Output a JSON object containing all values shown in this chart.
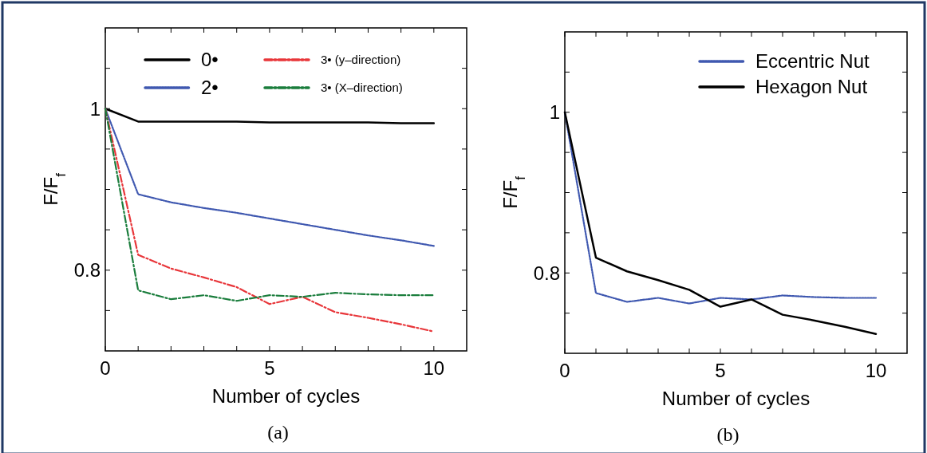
{
  "chart_data": [
    {
      "type": "line",
      "title": "(a)",
      "xlabel": "Number of cycles",
      "ylabel": "F/F$_{f}$",
      "x": [
        0,
        1,
        2,
        3,
        4,
        5,
        6,
        7,
        8,
        9,
        10
      ],
      "xlim": [
        0,
        11
      ],
      "xticks": [
        0,
        {
          "value": 1,
          "label": null
        },
        {
          "value": 2,
          "label": null
        },
        {
          "value": 3,
          "label": null
        },
        {
          "value": 4,
          "label": null
        },
        5,
        {
          "value": 6,
          "label": null
        },
        {
          "value": 7,
          "label": null
        },
        {
          "value": 8,
          "label": null
        },
        {
          "value": 9,
          "label": null
        },
        10
      ],
      "ylim": [
        0.7,
        1.1
      ],
      "yticks": [
        {
          "value": 0.75,
          "label": null
        },
        {
          "value": 0.8,
          "label": "0.8"
        },
        {
          "value": 0.85,
          "label": null
        },
        {
          "value": 0.9,
          "label": null
        },
        {
          "value": 0.95,
          "label": null
        },
        1,
        {
          "value": 1.05,
          "label": null
        }
      ],
      "grid": false,
      "legend": "top",
      "marker": "none",
      "series": [
        {
          "name": "0•",
          "color": "#000000",
          "line_style": "solid",
          "values": [
            1,
            0.984,
            0.984,
            0.984,
            0.984,
            0.983,
            0.983,
            0.983,
            0.983,
            0.982,
            0.982
          ]
        },
        {
          "name": "2•",
          "color": "#3f58b0",
          "line_style": "dotted",
          "values": [
            1,
            0.894,
            0.884,
            0.877,
            0.871,
            0.864,
            0.857,
            0.85,
            0.843,
            0.837,
            0.83
          ]
        },
        {
          "name": "3• (y–direction)",
          "color": "#e8363a",
          "line_style": "dashed",
          "values": [
            1,
            0.819,
            0.802,
            0.791,
            0.779,
            0.758,
            0.767,
            0.748,
            0.741,
            0.733,
            0.724
          ]
        },
        {
          "name": "3• (X–direction)",
          "color": "#1a7d3c",
          "line_style": "dashed",
          "values": [
            1,
            0.775,
            0.764,
            0.769,
            0.762,
            0.769,
            0.767,
            0.772,
            0.77,
            0.769,
            0.769
          ]
        }
      ]
    },
    {
      "type": "line",
      "title": "(b)",
      "xlabel": "Number of cycles",
      "ylabel": "F/F$_{f}$",
      "x": [
        0,
        1,
        2,
        3,
        4,
        5,
        6,
        7,
        8,
        9,
        10
      ],
      "xlim": [
        0,
        11
      ],
      "xticks": [
        0,
        {
          "value": 1,
          "label": null
        },
        {
          "value": 2,
          "label": null
        },
        {
          "value": 3,
          "label": null
        },
        {
          "value": 4,
          "label": null
        },
        5,
        {
          "value": 6,
          "label": null
        },
        {
          "value": 7,
          "label": null
        },
        {
          "value": 8,
          "label": null
        },
        {
          "value": 9,
          "label": null
        },
        10
      ],
      "ylim": [
        0.7,
        1.1
      ],
      "yticks": [
        {
          "value": 0.75,
          "label": null
        },
        {
          "value": 0.8,
          "label": "0.8"
        },
        {
          "value": 0.85,
          "label": null
        },
        {
          "value": 0.9,
          "label": null
        },
        {
          "value": 0.95,
          "label": null
        },
        1,
        {
          "value": 1.05,
          "label": null
        }
      ],
      "grid": false,
      "legend": "top right",
      "marker": "none",
      "series": [
        {
          "name": "Eccentric Nut",
          "color": "#3f58b0",
          "line_style": "dotted",
          "values": [
            1,
            0.775,
            0.764,
            0.769,
            0.762,
            0.769,
            0.767,
            0.772,
            0.77,
            0.769,
            0.769
          ]
        },
        {
          "name": "Hexagon Nut",
          "color": "#000000",
          "line_style": "solid",
          "values": [
            1,
            0.819,
            0.802,
            0.791,
            0.779,
            0.758,
            0.767,
            0.748,
            0.741,
            0.733,
            0.724
          ]
        }
      ]
    }
  ]
}
